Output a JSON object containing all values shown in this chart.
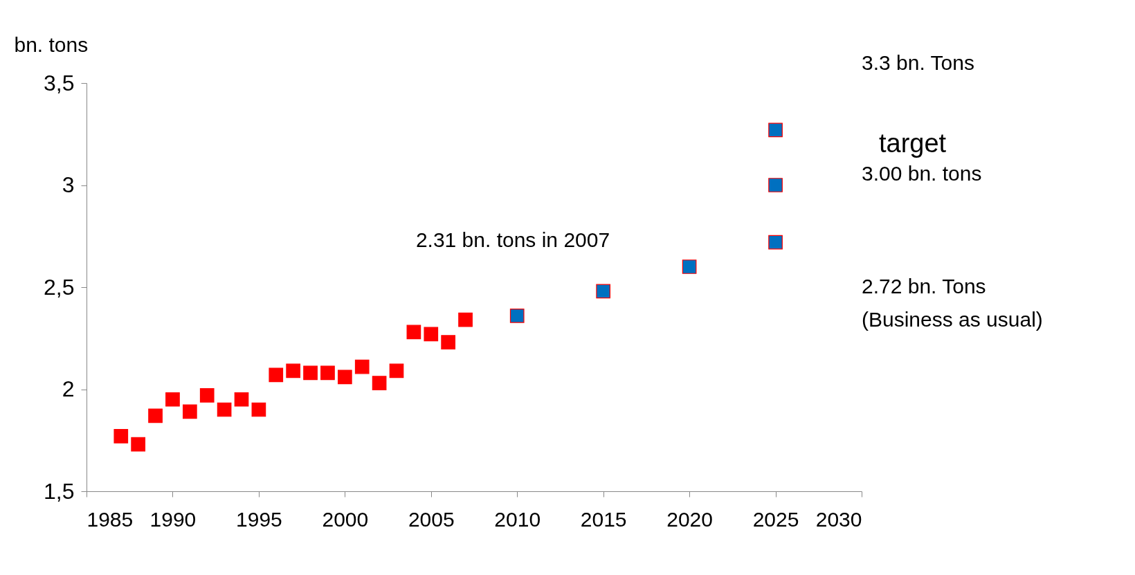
{
  "chart_data": {
    "type": "scatter",
    "ylabel": "bn. tons",
    "marker": "square",
    "grid": false,
    "xlim": [
      1985,
      2030
    ],
    "xticks": [
      1985,
      1990,
      1995,
      2000,
      2005,
      2010,
      2015,
      2020,
      2025,
      2030
    ],
    "ylim": [
      1.5,
      3.5
    ],
    "yticks": [
      {
        "value": 1.5,
        "label": "1,5"
      },
      2,
      {
        "value": 2.5,
        "label": "2,5"
      },
      3,
      {
        "value": 3.5,
        "label": "3,5"
      }
    ],
    "series": [
      {
        "color": "#ff0000",
        "x": [
          1987,
          1988,
          1989,
          1990,
          1991,
          1992,
          1993,
          1994,
          1995,
          1996,
          1997,
          1998,
          1999,
          2000,
          2001,
          2002,
          2003,
          2004,
          2005,
          2006,
          2007
        ],
        "values": [
          1.77,
          1.73,
          1.87,
          1.95,
          1.89,
          1.97,
          1.9,
          1.95,
          1.9,
          2.07,
          2.09,
          2.08,
          2.08,
          2.06,
          2.11,
          2.03,
          2.09,
          2.28,
          2.27,
          2.23,
          2.34
        ]
      },
      {
        "color": "#0070c0",
        "x": [
          2010,
          2015,
          2020,
          2025,
          2025,
          2025
        ],
        "values": [
          2.36,
          2.48,
          2.6,
          3.27,
          3.0,
          2.72
        ]
      }
    ],
    "annotations": [
      "2.31 bn. tons in 2007",
      "3.3 bn. Tons",
      "target",
      "3.00 bn. tons",
      "2.72 bn. Tons\n(Business as usual)"
    ]
  }
}
